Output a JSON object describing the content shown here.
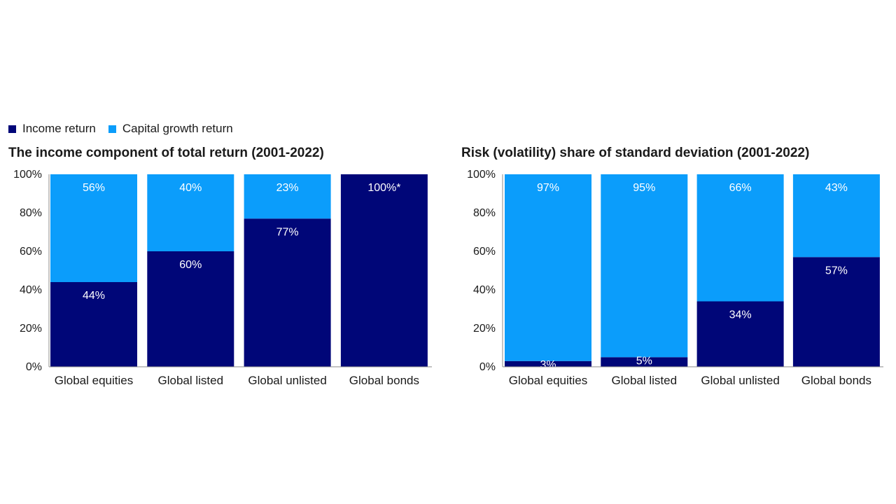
{
  "legend": {
    "items": [
      {
        "label": "Income return",
        "color": "#000678"
      },
      {
        "label": "Capital growth return",
        "color": "#0b9dfb"
      }
    ]
  },
  "colors": {
    "income": "#000678",
    "capital": "#0b9dfb",
    "axis": "#8a8a8a"
  },
  "chart_data": [
    {
      "type": "bar",
      "stacked": true,
      "title": "The income component of total return (2001-2022)",
      "categories": [
        "Global equities",
        "Global listed",
        "Global unlisted",
        "Global bonds"
      ],
      "series": [
        {
          "name": "Income return",
          "values": [
            44,
            60,
            77,
            100
          ],
          "labels": [
            "44%",
            "60%",
            "77%",
            "100%*"
          ]
        },
        {
          "name": "Capital growth return",
          "values": [
            56,
            40,
            23,
            0
          ],
          "labels": [
            "56%",
            "40%",
            "23%",
            ""
          ]
        }
      ],
      "yticks": [
        "0%",
        "20%",
        "40%",
        "60%",
        "80%",
        "100%"
      ],
      "ylim": [
        0,
        100
      ],
      "xlabel": "",
      "ylabel": "",
      "grid": false
    },
    {
      "type": "bar",
      "stacked": true,
      "title": "Risk (volatility) share of standard deviation (2001-2022)",
      "categories": [
        "Global equities",
        "Global listed",
        "Global unlisted",
        "Global bonds"
      ],
      "series": [
        {
          "name": "Income return",
          "values": [
            3,
            5,
            34,
            57
          ],
          "labels": [
            "3%",
            "5%",
            "34%",
            "57%"
          ]
        },
        {
          "name": "Capital growth return",
          "values": [
            97,
            95,
            66,
            43
          ],
          "labels": [
            "97%",
            "95%",
            "66%",
            "43%"
          ]
        }
      ],
      "yticks": [
        "0%",
        "20%",
        "40%",
        "60%",
        "80%",
        "100%"
      ],
      "ylim": [
        0,
        100
      ],
      "xlabel": "",
      "ylabel": "",
      "grid": false
    }
  ]
}
